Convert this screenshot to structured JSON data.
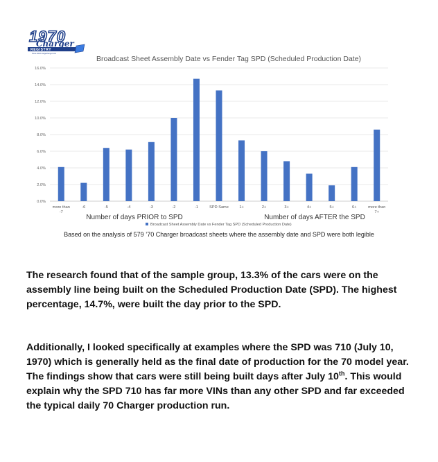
{
  "logo": {
    "year": "1970",
    "script": "Charger",
    "sub": "REGISTRY",
    "tagline": "Since 2010 dodgecharger.com"
  },
  "chart_data": {
    "type": "bar",
    "title": "Broadcast Sheet Assembly Date vs Fender Tag SPD (Scheduled Production Date)",
    "categories": [
      "more than -7",
      "-6",
      "-5",
      "-4",
      "-3",
      "-2",
      "-1",
      "SPD Same",
      "1+",
      "2+",
      "3+",
      "4+",
      "5+",
      "6+",
      "more than 7+"
    ],
    "category_lines": [
      [
        "more than",
        "-7"
      ],
      [
        "-6"
      ],
      [
        "-5"
      ],
      [
        "-4"
      ],
      [
        "-3"
      ],
      [
        "-2"
      ],
      [
        "-1"
      ],
      [
        "SPD Same"
      ],
      [
        "1+"
      ],
      [
        "2+"
      ],
      [
        "3+"
      ],
      [
        "4+"
      ],
      [
        "5+"
      ],
      [
        "6+"
      ],
      [
        "more than",
        "7+"
      ]
    ],
    "series": [
      {
        "name": "Broadcast Sheet Assembly Date vs Fender Tag SPD (Scheduled Production Date)",
        "values": [
          4.1,
          2.2,
          6.4,
          6.2,
          7.1,
          10.0,
          14.7,
          13.3,
          7.3,
          6.0,
          4.8,
          3.3,
          1.9,
          4.1,
          8.6
        ]
      }
    ],
    "yticks": [
      "0.0%",
      "2.0%",
      "4.0%",
      "6.0%",
      "8.0%",
      "10.0%",
      "12.0%",
      "14.0%",
      "16.0%"
    ],
    "ylim": [
      0,
      16
    ],
    "grid": true,
    "legend": "bottom",
    "axis_label_left": "Number of days PRIOR to SPD",
    "axis_label_right": "Number of days AFTER the SPD",
    "bar_color": "#4472c4"
  },
  "caption": "Based on the analysis of 579 ’70 Charger broadcast sheets where the assembly date and SPD were both legible",
  "paragraph1": "The research found that of the sample group, 13.3% of the cars were on the assembly line being built on the Scheduled Production Date (SPD). The highest percentage, 14.7%, were built the day prior to the SPD.",
  "paragraph2_main": "Additionally, I looked specifically at examples where the SPD was 710 (July 10, 1970) which is generally held as the final date of production for the 70 model year. The findings show that cars were still being built days after July 10",
  "paragraph2_sup": "th",
  "paragraph2_end": ". This would explain why the SPD 710 has far more VINs than any other SPD and far exceeded the typical daily 70 Charger production run."
}
